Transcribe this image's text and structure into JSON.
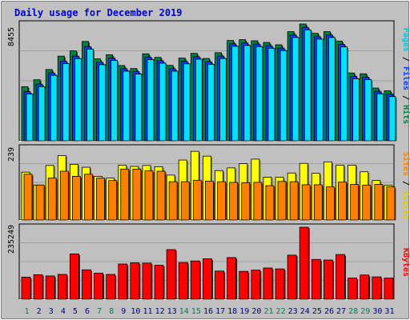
{
  "title": "Daily usage for December 2019",
  "colors": {
    "frame_bg": "#c0c0c0",
    "plot_bg": "#c0c0c0",
    "title": "#0000cc",
    "hits": "#008040",
    "files": "#0040ff",
    "pages": "#00e0ff",
    "visits": "#ffff00",
    "sites": "#ff8000",
    "kbytes": "#ff0000",
    "day_weekend": "#00805c",
    "day_weekday": "#000080",
    "grid": "#808080"
  },
  "chart_data": [
    {
      "type": "bar",
      "name": "hits-files-pages",
      "axis_max_label": "8455",
      "ylim": [
        0,
        8455
      ],
      "right_label": {
        "pages": "Pages",
        "sep1": " / ",
        "files": "Files",
        "sep2": " / ",
        "hits": "Hits"
      },
      "categories": [
        "1",
        "2",
        "3",
        "4",
        "5",
        "6",
        "7",
        "8",
        "9",
        "10",
        "11",
        "12",
        "13",
        "14",
        "15",
        "16",
        "17",
        "18",
        "19",
        "20",
        "21",
        "22",
        "23",
        "24",
        "25",
        "26",
        "27",
        "28",
        "29",
        "30",
        "31"
      ],
      "series": [
        {
          "name": "Hits",
          "color_key": "hits",
          "values": [
            3920,
            4420,
            5160,
            6130,
            6510,
            7190,
            5930,
            6230,
            5450,
            5230,
            6300,
            6040,
            5460,
            5990,
            6330,
            5960,
            6380,
            7260,
            7320,
            7240,
            7120,
            6950,
            7900,
            8455,
            7780,
            7900,
            7220,
            4910,
            4850,
            3820,
            3620
          ]
        },
        {
          "name": "Files",
          "color_key": "files",
          "values": [
            3560,
            4100,
            4920,
            5770,
            6130,
            6820,
            5690,
            5990,
            5220,
            5010,
            6060,
            5800,
            5220,
            5750,
            6090,
            5720,
            6140,
            7020,
            7080,
            7000,
            6880,
            6710,
            7660,
            8215,
            7540,
            7660,
            6980,
            4670,
            4610,
            3580,
            3380
          ]
        },
        {
          "name": "Pages",
          "color_key": "pages",
          "values": [
            3380,
            3920,
            4740,
            5590,
            5950,
            6640,
            5510,
            5810,
            5040,
            4830,
            5880,
            5620,
            5040,
            5570,
            5910,
            5540,
            5960,
            6840,
            6900,
            6820,
            6700,
            6530,
            7480,
            8030,
            7360,
            7480,
            6800,
            4490,
            4430,
            3400,
            3200
          ]
        }
      ]
    },
    {
      "type": "bar",
      "name": "visits-sites",
      "axis_max_label": "239",
      "ylim": [
        0,
        239
      ],
      "right_label": {
        "sites": "Sites",
        "sep1": " / ",
        "visits": "Visits"
      },
      "categories": [
        "1",
        "2",
        "3",
        "4",
        "5",
        "6",
        "7",
        "8",
        "9",
        "10",
        "11",
        "12",
        "13",
        "14",
        "15",
        "16",
        "17",
        "18",
        "19",
        "20",
        "21",
        "22",
        "23",
        "24",
        "25",
        "26",
        "27",
        "28",
        "29",
        "30",
        "31"
      ],
      "series": [
        {
          "name": "Visits",
          "color_key": "visits",
          "values": [
            159,
            116,
            181,
            214,
            185,
            175,
            145,
            139,
            182,
            178,
            181,
            177,
            149,
            199,
            228,
            212,
            164,
            173,
            187,
            202,
            142,
            142,
            156,
            188,
            155,
            193,
            182,
            182,
            160,
            131,
            115
          ]
        },
        {
          "name": "Sites",
          "color_key": "sites",
          "values": [
            152,
            116,
            139,
            162,
            145,
            152,
            139,
            131,
            169,
            169,
            163,
            162,
            127,
            127,
            132,
            129,
            127,
            125,
            124,
            125,
            114,
            128,
            127,
            117,
            117,
            110,
            126,
            118,
            116,
            118,
            110
          ]
        }
      ]
    },
    {
      "type": "bar",
      "name": "kbytes",
      "axis_max_label": "235249",
      "ylim": [
        0,
        235249
      ],
      "right_label": {
        "kbytes": "KBytes"
      },
      "categories": [
        "1",
        "2",
        "3",
        "4",
        "5",
        "6",
        "7",
        "8",
        "9",
        "10",
        "11",
        "12",
        "13",
        "14",
        "15",
        "16",
        "17",
        "18",
        "19",
        "20",
        "21",
        "22",
        "23",
        "24",
        "25",
        "26",
        "27",
        "28",
        "29",
        "30",
        "31"
      ],
      "series": [
        {
          "name": "KBytes",
          "color_key": "kbytes",
          "values": [
            72000,
            80000,
            76000,
            81000,
            148000,
            96000,
            85000,
            81000,
            115000,
            119000,
            118000,
            111000,
            162000,
            120000,
            125000,
            132000,
            92000,
            136000,
            91000,
            95000,
            102000,
            99000,
            144000,
            235249,
            130000,
            128000,
            146000,
            69000,
            79000,
            73000,
            69000
          ]
        }
      ]
    }
  ],
  "day_labels": [
    "1",
    "2",
    "3",
    "4",
    "5",
    "6",
    "7",
    "8",
    "9",
    "10",
    "11",
    "12",
    "13",
    "14",
    "15",
    "16",
    "17",
    "18",
    "19",
    "20",
    "21",
    "22",
    "23",
    "24",
    "25",
    "26",
    "27",
    "28",
    "29",
    "30",
    "31"
  ],
  "weekend_days": [
    "1",
    "7",
    "8",
    "14",
    "15",
    "21",
    "22",
    "28",
    "29"
  ]
}
